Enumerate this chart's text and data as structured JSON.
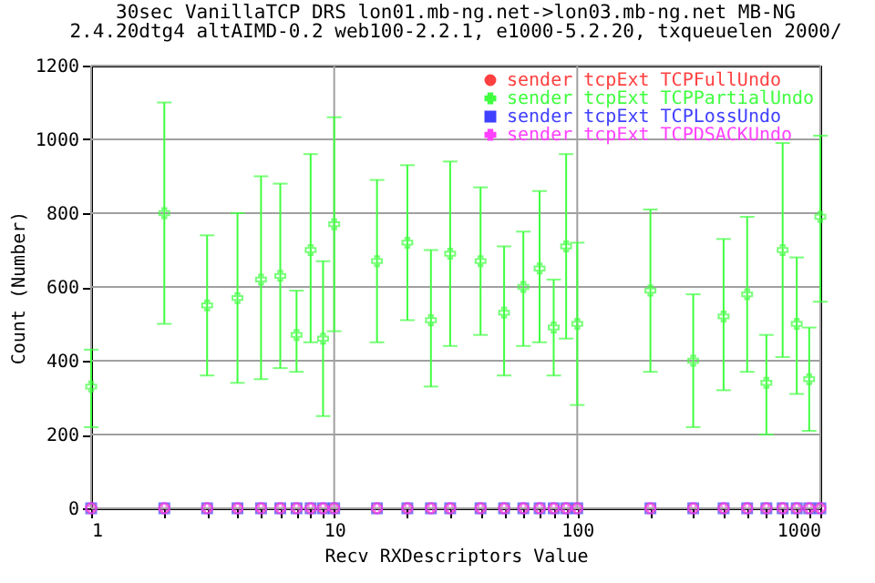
{
  "chart_data": {
    "type": "scatter",
    "title": "30sec VanillaTCP DRS lon01.mb-ng.net->lon03.mb-ng.net MB-NG",
    "subtitle": "2.4.20dtg4 altAIMD-0.2 web100-2.2.1, e1000-5.2.20, txqueuelen 2000/",
    "xlabel": "Recv RXDescriptors Value",
    "ylabel": "Count (Number)",
    "x": [
      1,
      2,
      3,
      4,
      5,
      6,
      7,
      8,
      9,
      10,
      15,
      20,
      25,
      30,
      40,
      50,
      60,
      70,
      80,
      90,
      100,
      200,
      300,
      400,
      500,
      600,
      700,
      800,
      900,
      1000
    ],
    "series": [
      {
        "name": "sender tcpExt TCPFullUndo",
        "color": "#ff4040",
        "marker": "circle",
        "values": [
          0,
          0,
          0,
          0,
          0,
          0,
          0,
          0,
          0,
          0,
          0,
          0,
          0,
          0,
          0,
          0,
          0,
          0,
          0,
          0,
          0,
          0,
          0,
          0,
          0,
          0,
          0,
          0,
          0,
          0
        ]
      },
      {
        "name": "sender tcpExt TCPPartialUndo",
        "color": "#40ff40",
        "marker": "cross",
        "values": [
          330,
          800,
          550,
          570,
          620,
          630,
          470,
          700,
          460,
          770,
          670,
          720,
          510,
          690,
          670,
          530,
          600,
          650,
          490,
          710,
          500,
          590,
          400,
          520,
          580,
          340,
          700,
          500,
          350,
          790
        ],
        "errors": [
          [
            220,
            430
          ],
          [
            500,
            1100
          ],
          [
            360,
            740
          ],
          [
            340,
            800
          ],
          [
            350,
            900
          ],
          [
            380,
            880
          ],
          [
            370,
            590
          ],
          [
            450,
            960
          ],
          [
            250,
            670
          ],
          [
            480,
            1060
          ],
          [
            450,
            890
          ],
          [
            510,
            930
          ],
          [
            330,
            700
          ],
          [
            440,
            940
          ],
          [
            470,
            870
          ],
          [
            360,
            710
          ],
          [
            440,
            750
          ],
          [
            450,
            860
          ],
          [
            360,
            620
          ],
          [
            460,
            960
          ],
          [
            280,
            720
          ],
          [
            370,
            810
          ],
          [
            220,
            580
          ],
          [
            320,
            730
          ],
          [
            370,
            790
          ],
          [
            200,
            470
          ],
          [
            410,
            990
          ],
          [
            310,
            680
          ],
          [
            210,
            490
          ],
          [
            560,
            1010
          ]
        ]
      },
      {
        "name": "sender tcpExt TCPLossUndo",
        "color": "#4040ff",
        "marker": "square",
        "values": [
          0,
          0,
          0,
          0,
          0,
          0,
          0,
          0,
          0,
          0,
          0,
          0,
          0,
          0,
          0,
          0,
          0,
          0,
          0,
          0,
          0,
          0,
          0,
          0,
          0,
          0,
          0,
          0,
          0,
          0
        ]
      },
      {
        "name": "sender tcpExt TCPDSACKUndo",
        "color": "#ff40ff",
        "marker": "cross",
        "values": [
          0,
          0,
          0,
          0,
          0,
          0,
          0,
          0,
          0,
          0,
          0,
          0,
          0,
          0,
          0,
          0,
          0,
          0,
          0,
          0,
          0,
          0,
          0,
          0,
          0,
          0,
          0,
          0,
          0,
          0
        ]
      }
    ],
    "xlim": [
      1,
      1000
    ],
    "xticks": [
      1,
      {
        "value": 2,
        "label": null
      },
      {
        "value": 3,
        "label": null
      },
      {
        "value": 4,
        "label": null
      },
      {
        "value": 5,
        "label": null
      },
      {
        "value": 6,
        "label": null
      },
      {
        "value": 7,
        "label": null
      },
      {
        "value": 8,
        "label": null
      },
      {
        "value": 9,
        "label": null
      },
      10,
      {
        "value": 20,
        "label": null
      },
      {
        "value": 30,
        "label": null
      },
      {
        "value": 40,
        "label": null
      },
      {
        "value": 50,
        "label": null
      },
      {
        "value": 60,
        "label": null
      },
      {
        "value": 70,
        "label": null
      },
      {
        "value": 80,
        "label": null
      },
      {
        "value": 90,
        "label": null
      },
      100,
      {
        "value": 200,
        "label": null
      },
      {
        "value": 300,
        "label": null
      },
      {
        "value": 400,
        "label": null
      },
      {
        "value": 500,
        "label": null
      },
      {
        "value": 600,
        "label": null
      },
      {
        "value": 700,
        "label": null
      },
      {
        "value": 800,
        "label": null
      },
      {
        "value": 900,
        "label": null
      },
      1000
    ],
    "ylim": [
      0,
      1200
    ],
    "yticks": [
      0,
      200,
      400,
      600,
      800,
      1000,
      1200
    ],
    "log": "x",
    "grid": true,
    "legend": "top right"
  }
}
